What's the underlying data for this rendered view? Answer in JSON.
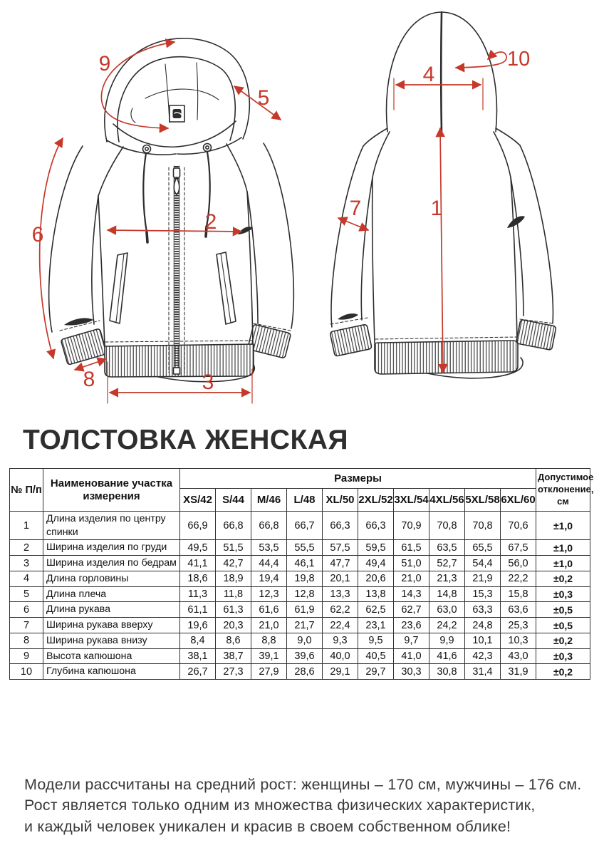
{
  "title": "ТОЛСТОВКА ЖЕНСКАЯ",
  "diagram": {
    "arrow_color": "#c5392b",
    "line_color": "#2d2d2d",
    "front_labels": {
      "hood_height": "9",
      "shoulder_length": "5",
      "sleeve_length": "6",
      "chest_width": "2",
      "cuff_width": "8",
      "hem_width": "3"
    },
    "back_labels": {
      "hood_depth": "10",
      "neck_width": "4",
      "back_length": "1",
      "sleeve_top_width": "7"
    }
  },
  "table": {
    "col_number_header": "№ П/п",
    "col_name_header": "Наименование участка измерения",
    "sizes_header": "Размеры",
    "tolerance_header": "Допустимое отклонение, см",
    "size_columns": [
      "XS/42",
      "S/44",
      "M/46",
      "L/48",
      "XL/50",
      "2XL/52",
      "3XL/54",
      "4XL/56",
      "5XL/58",
      "6XL/60"
    ],
    "rows": [
      {
        "num": "1",
        "name": "Длина изделия по центру спинки",
        "values": [
          "66,9",
          "66,8",
          "66,8",
          "66,7",
          "66,3",
          "66,3",
          "70,9",
          "70,8",
          "70,8",
          "70,6"
        ],
        "tolerance": "±1,0"
      },
      {
        "num": "2",
        "name": "Ширина изделия по груди",
        "values": [
          "49,5",
          "51,5",
          "53,5",
          "55,5",
          "57,5",
          "59,5",
          "61,5",
          "63,5",
          "65,5",
          "67,5"
        ],
        "tolerance": "±1,0"
      },
      {
        "num": "3",
        "name": "Ширина изделия по бедрам",
        "values": [
          "41,1",
          "42,7",
          "44,4",
          "46,1",
          "47,7",
          "49,4",
          "51,0",
          "52,7",
          "54,4",
          "56,0"
        ],
        "tolerance": "±1,0"
      },
      {
        "num": "4",
        "name": "Длина горловины",
        "values": [
          "18,6",
          "18,9",
          "19,4",
          "19,8",
          "20,1",
          "20,6",
          "21,0",
          "21,3",
          "21,9",
          "22,2"
        ],
        "tolerance": "±0,2"
      },
      {
        "num": "5",
        "name": "Длина плеча",
        "values": [
          "11,3",
          "11,8",
          "12,3",
          "12,8",
          "13,3",
          "13,8",
          "14,3",
          "14,8",
          "15,3",
          "15,8"
        ],
        "tolerance": "±0,3"
      },
      {
        "num": "6",
        "name": "Длина рукава",
        "values": [
          "61,1",
          "61,3",
          "61,6",
          "61,9",
          "62,2",
          "62,5",
          "62,7",
          "63,0",
          "63,3",
          "63,6"
        ],
        "tolerance": "±0,5"
      },
      {
        "num": "7",
        "name": "Ширина рукава вверху",
        "values": [
          "19,6",
          "20,3",
          "21,0",
          "21,7",
          "22,4",
          "23,1",
          "23,6",
          "24,2",
          "24,8",
          "25,3"
        ],
        "tolerance": "±0,5"
      },
      {
        "num": "8",
        "name": "Ширина рукава внизу",
        "values": [
          "8,4",
          "8,6",
          "8,8",
          "9,0",
          "9,3",
          "9,5",
          "9,7",
          "9,9",
          "10,1",
          "10,3"
        ],
        "tolerance": "±0,2"
      },
      {
        "num": "9",
        "name": "Высота капюшона",
        "values": [
          "38,1",
          "38,7",
          "39,1",
          "39,6",
          "40,0",
          "40,5",
          "41,0",
          "41,6",
          "42,3",
          "43,0"
        ],
        "tolerance": "±0,3"
      },
      {
        "num": "10",
        "name": "Глубина капюшона",
        "values": [
          "26,7",
          "27,3",
          "27,9",
          "28,6",
          "29,1",
          "29,7",
          "30,3",
          "30,8",
          "31,4",
          "31,9"
        ],
        "tolerance": "±0,2"
      }
    ]
  },
  "footer": {
    "line1": "Модели рассчитаны на средний рост: женщины – 170 см, мужчины – 176 см.",
    "line2": "Рост является только одним из множества физических характеристик,",
    "line3": "и каждый человек уникален и красив в своем собственном облике!"
  }
}
